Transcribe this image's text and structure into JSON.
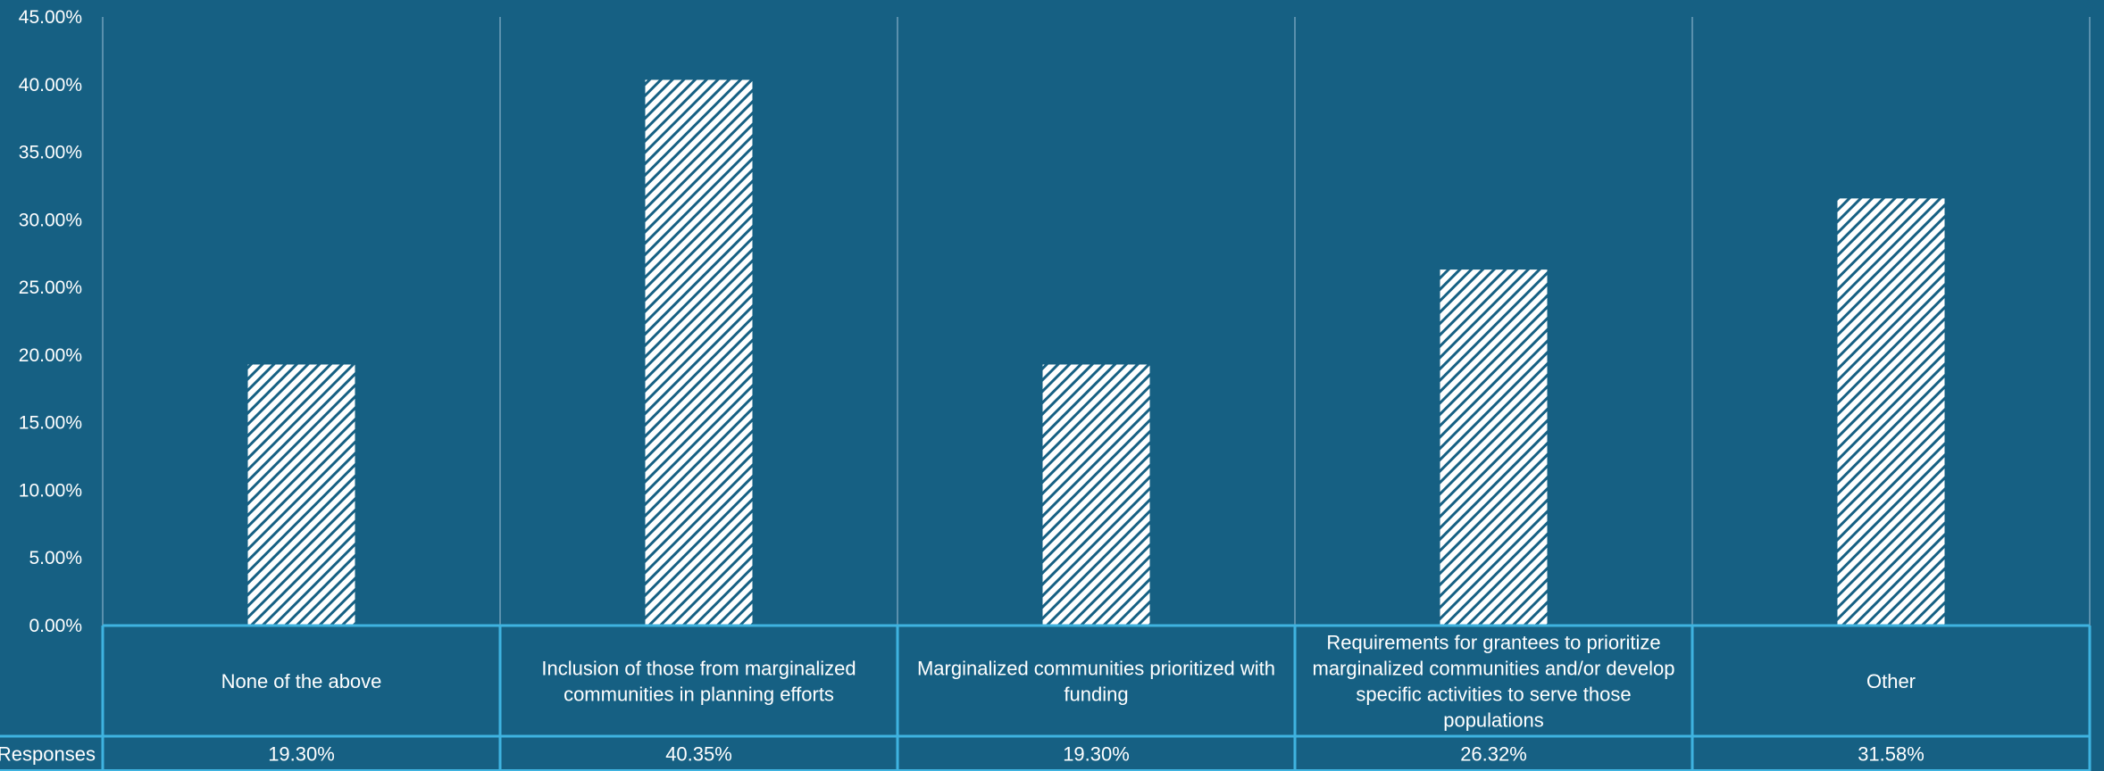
{
  "chart_data": {
    "type": "bar",
    "categories": [
      "None of the above",
      "Inclusion of those from marginalized communities in planning efforts",
      "Marginalized communities prioritized with funding",
      "Requirements for grantees to prioritize marginalized communities and/or develop specific activities to serve those populations",
      "Other"
    ],
    "series": [
      {
        "name": "Responses",
        "values": [
          19.3,
          40.35,
          19.3,
          26.32,
          31.58
        ]
      }
    ],
    "value_labels": [
      "19.30%",
      "40.35%",
      "19.30%",
      "26.32%",
      "31.58%"
    ],
    "ylim": [
      0,
      45
    ],
    "ytick_labels": [
      "0.00%",
      "5.00%",
      "10.00%",
      "15.00%",
      "20.00%",
      "25.00%",
      "30.00%",
      "35.00%",
      "40.00%",
      "45.00%"
    ],
    "xlabel": "",
    "ylabel": "",
    "title": "",
    "grid": "vertical category dividers",
    "data_table": true,
    "bar_fill": "diagonal hatch, white on background",
    "colors": {
      "background": "#166083",
      "bars": "#ffffff",
      "table_border": "#3fb3e0",
      "divider": "#5a90ad"
    }
  }
}
